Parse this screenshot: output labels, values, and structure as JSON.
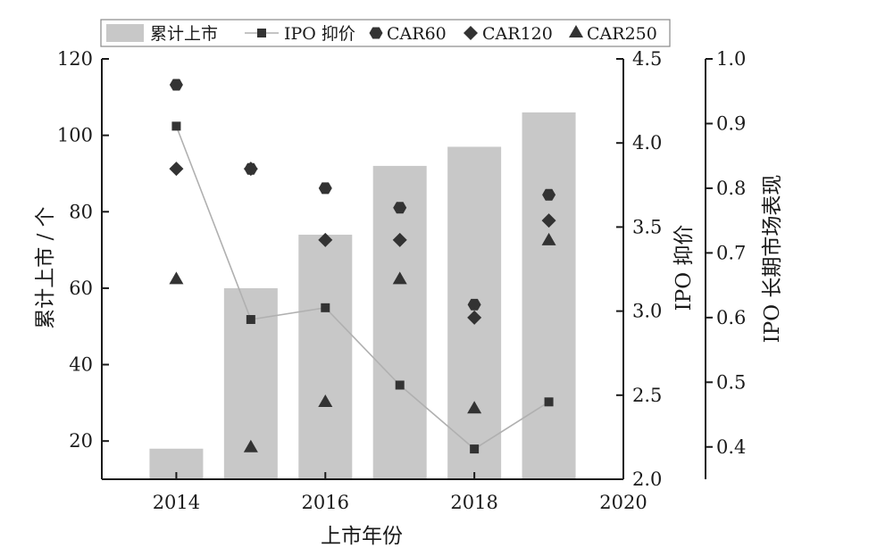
{
  "chart_data": {
    "type": "bar",
    "categories": [
      "2014",
      "2015",
      "2016",
      "2017",
      "2018",
      "2019"
    ],
    "xlabel": "上市年份",
    "x_ticks": [
      "2014",
      "2016",
      "2018",
      "2020"
    ],
    "x_range": [
      2013.0,
      2020.0
    ],
    "axes": {
      "left": {
        "label": "累计上市 / 个",
        "ylim": [
          10,
          120
        ],
        "ticks": [
          "20",
          "40",
          "60",
          "80",
          "100",
          "120"
        ]
      },
      "right1": {
        "label": "IPO 抑价",
        "ylim": [
          2.0,
          4.5
        ],
        "ticks": [
          "2.0",
          "2.5",
          "3.0",
          "3.5",
          "4.0",
          "4.5"
        ]
      },
      "right2": {
        "label": "IPO 长期市场表现",
        "ylim": [
          0.35,
          1.0
        ],
        "ticks": [
          "0.4",
          "0.5",
          "0.6",
          "0.7",
          "0.8",
          "0.9",
          "1.0"
        ]
      }
    },
    "legend_position": "top",
    "series": [
      {
        "name": "累计上市",
        "kind": "bar",
        "axis": "left",
        "color": "#c8c8c8",
        "x": [
          2014,
          2015,
          2016,
          2017,
          2018,
          2019
        ],
        "values": [
          18,
          60,
          74,
          92,
          97,
          106
        ]
      },
      {
        "name": "IPO 抑价",
        "kind": "line",
        "marker": "square",
        "axis": "right1",
        "color": "#b0b0b0",
        "x": [
          2014,
          2015,
          2016,
          2017,
          2018,
          2019
        ],
        "values": [
          4.1,
          2.95,
          3.02,
          2.56,
          2.18,
          2.46
        ]
      },
      {
        "name": "CAR60",
        "kind": "scatter",
        "marker": "hexagon",
        "axis": "right2",
        "color": "#333333",
        "x": [
          2014,
          2015,
          2016,
          2017,
          2018,
          2019
        ],
        "values": [
          0.96,
          0.83,
          0.8,
          0.77,
          0.62,
          0.79
        ]
      },
      {
        "name": "CAR120",
        "kind": "scatter",
        "marker": "diamond",
        "axis": "right2",
        "color": "#333333",
        "x": [
          2014,
          2015,
          2016,
          2017,
          2018,
          2019
        ],
        "values": [
          0.83,
          0.83,
          0.72,
          0.72,
          0.6,
          0.75
        ]
      },
      {
        "name": "CAR250",
        "kind": "scatter",
        "marker": "triangle",
        "axis": "right2",
        "color": "#333333",
        "x": [
          2014,
          2015,
          2016,
          2017,
          2018,
          2019
        ],
        "values": [
          0.66,
          0.4,
          0.47,
          0.66,
          0.46,
          0.72
        ]
      }
    ]
  }
}
